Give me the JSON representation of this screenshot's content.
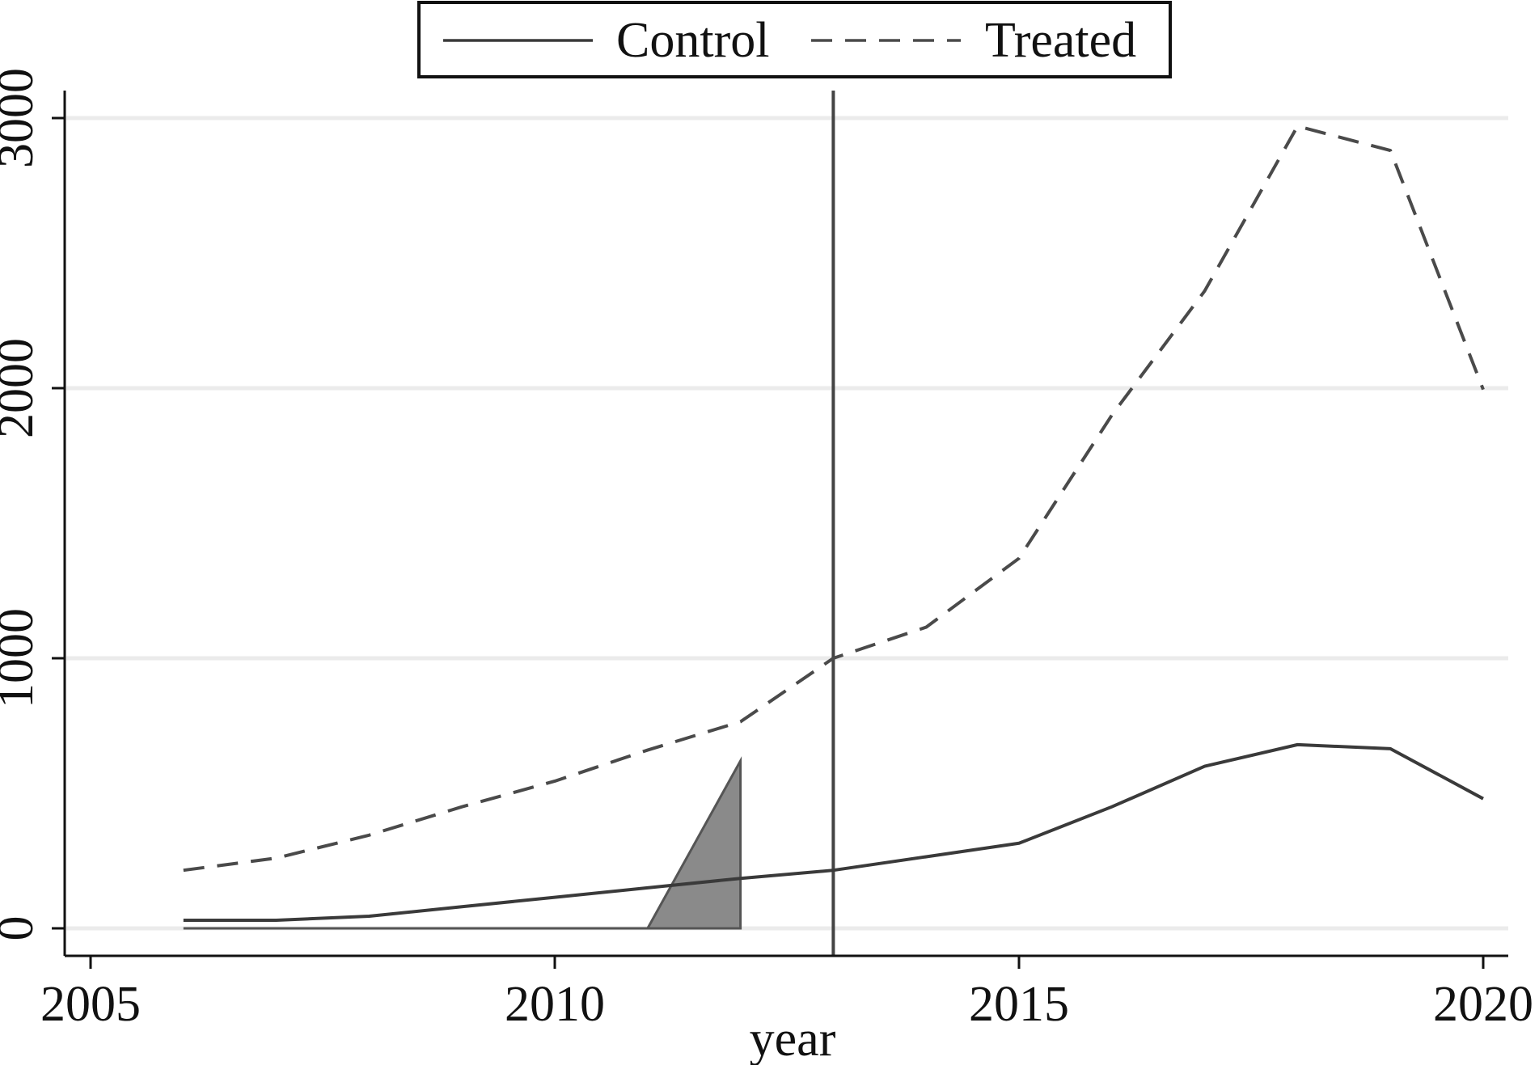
{
  "chart_data": {
    "type": "line",
    "title": "",
    "xlabel": "year",
    "ylabel": "",
    "xlim": [
      2005,
      2020
    ],
    "ylim": [
      -110,
      3100
    ],
    "x_ticks": [
      2005,
      2010,
      2015,
      2020
    ],
    "y_ticks": [
      0,
      1000,
      2000,
      3000
    ],
    "x_tick_labels": [
      "2005",
      "2010",
      "2015",
      "2020"
    ],
    "y_tick_labels": [
      "0",
      "1000",
      "2000",
      "3000"
    ],
    "grid": "horizontal",
    "legend_placement": "top-center",
    "vertical_marker_x": 2013,
    "series": [
      {
        "name": "Control",
        "style": "solid",
        "color": "#3a3a3a",
        "x": [
          2006,
          2007,
          2008,
          2009,
          2010,
          2011,
          2012,
          2013,
          2014,
          2015,
          2016,
          2017,
          2018,
          2019,
          2020
        ],
        "values": [
          30,
          30,
          45,
          80,
          115,
          150,
          185,
          215,
          265,
          315,
          450,
          600,
          680,
          665,
          480
        ]
      },
      {
        "name": "Treated",
        "style": "dashed",
        "color": "#4a4a4a",
        "x": [
          2006,
          2007,
          2008,
          2009,
          2010,
          2011,
          2012,
          2013,
          2014,
          2015,
          2016,
          2017,
          2018,
          2019,
          2020
        ],
        "values": [
          215,
          260,
          345,
          450,
          545,
          660,
          765,
          1000,
          1115,
          1370,
          1900,
          2360,
          2970,
          2880,
          1995
        ]
      }
    ],
    "shaded_region": {
      "color": "#8a8a8a",
      "points": [
        [
          2006,
          0
        ],
        [
          2011,
          0
        ],
        [
          2012,
          620
        ],
        [
          2012,
          0
        ]
      ]
    }
  }
}
